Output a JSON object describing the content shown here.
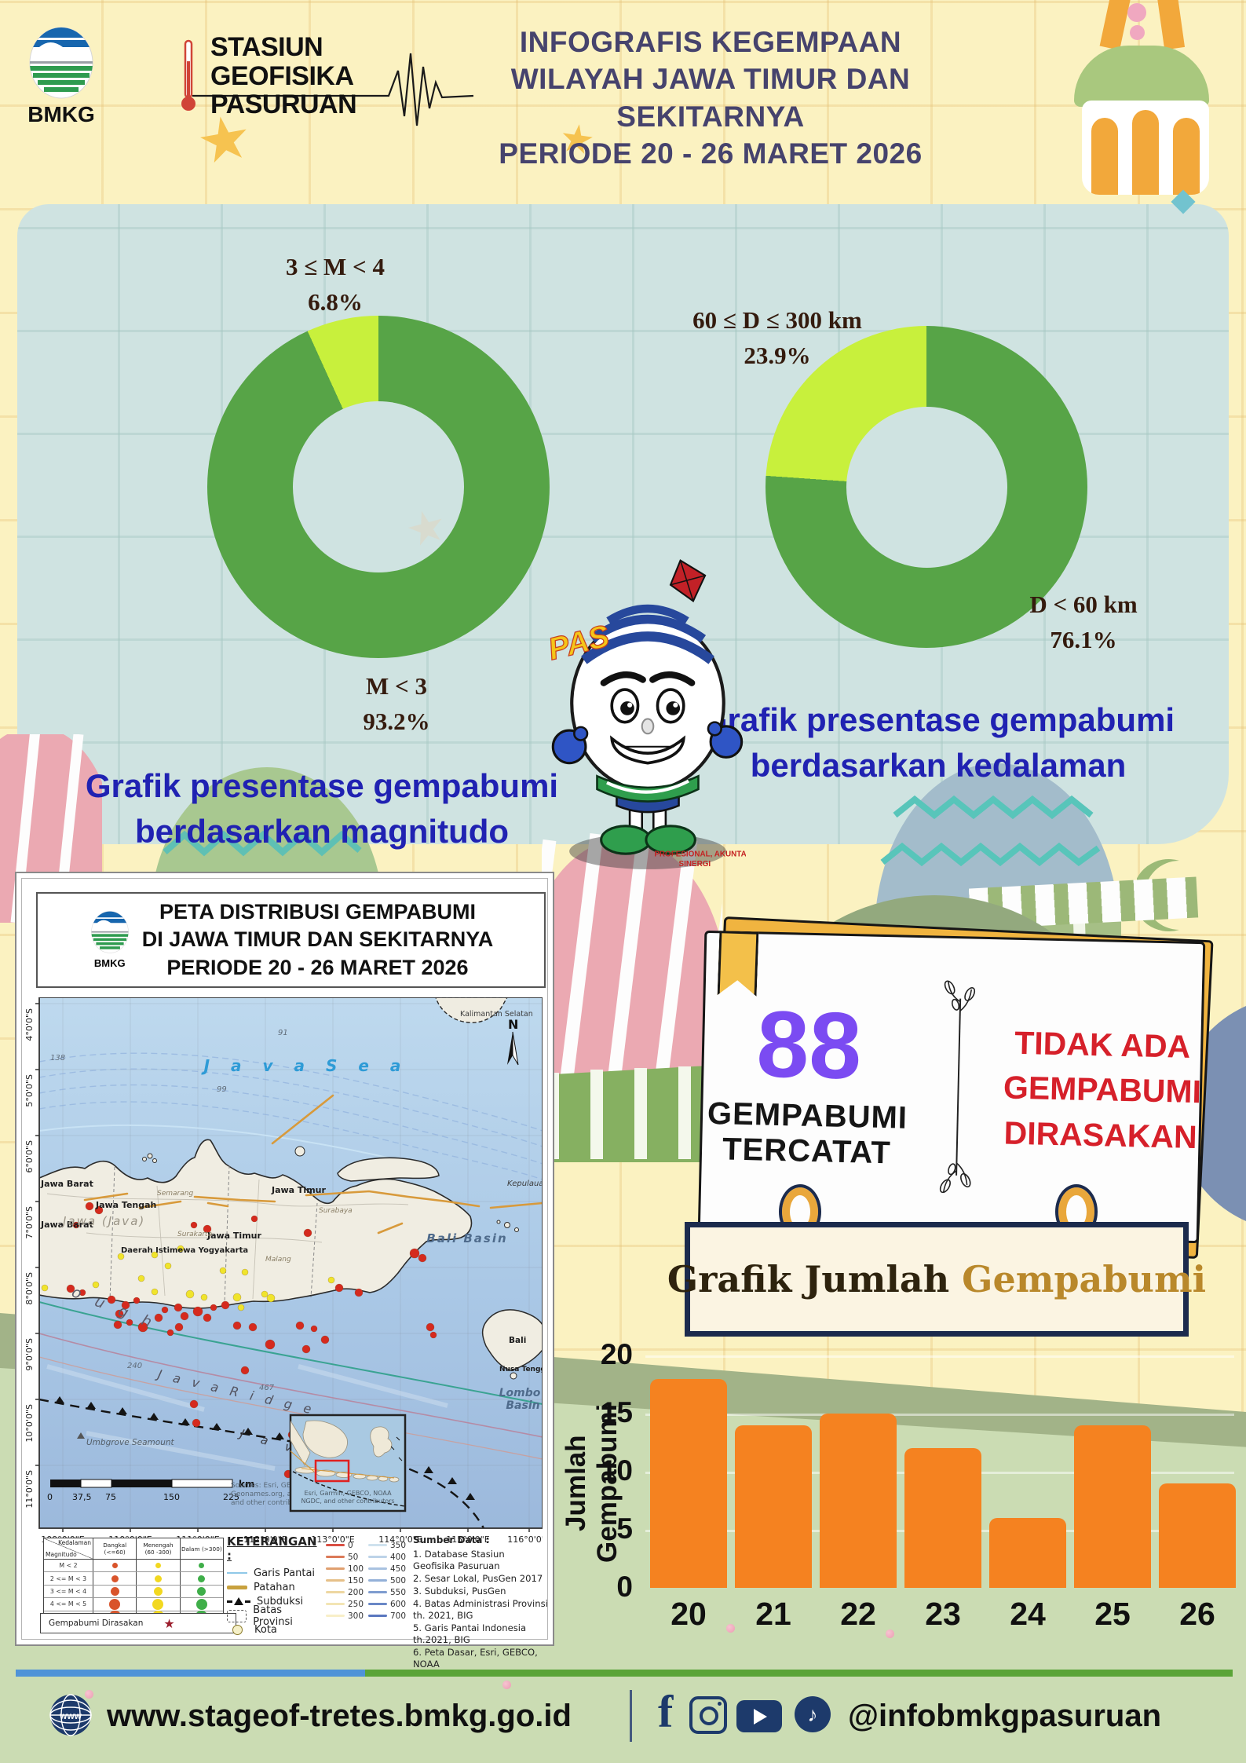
{
  "header": {
    "logo_text": "BMKG",
    "station_line1": "STASIUN",
    "station_line2": "GEOFISIKA",
    "station_line3": "PASURUAN",
    "title_line1": "INFOGRAFIS KEGEMPAAN",
    "title_line2": "WILAYAH JAWA TIMUR DAN SEKITARNYA",
    "title_line3": "PERIODE 20 - 26 MARET 2026"
  },
  "captions": {
    "left1": "Grafik presentase gempabumi",
    "left2": "berdasarkan magnitudo",
    "right1": "Grafik presentase gempabumi",
    "right2": "berdasarkan kedalaman"
  },
  "mascot": {
    "pas_label": "PAS",
    "motto_line1": "PROFESIONAL, AKUNTABLE,",
    "motto_line2": "SINERGI"
  },
  "chart_data": [
    {
      "id": "magnitude_donut",
      "type": "pie",
      "donut": true,
      "title": "Grafik presentase gempabumi berdasarkan magnitudo",
      "slices": [
        {
          "label": "M < 3",
          "pct": 93.2,
          "pct_label": "93.2%",
          "color": "#57a447"
        },
        {
          "label": "3 ≤ M < 4",
          "pct": 6.8,
          "pct_label": "6.8%",
          "color": "#c8f03c"
        }
      ]
    },
    {
      "id": "depth_donut",
      "type": "pie",
      "donut": true,
      "title": "Grafik presentase gempabumi berdasarkan kedalaman",
      "slices": [
        {
          "label": "D < 60 km",
          "pct": 76.1,
          "pct_label": "76.1%",
          "color": "#57a447"
        },
        {
          "label": "60 ≤ D ≤ 300 km",
          "pct": 23.9,
          "pct_label": "23.9%",
          "color": "#c8f03c"
        }
      ]
    },
    {
      "id": "daily_counts",
      "type": "bar",
      "title": "Grafik Jumlah Gempabumi",
      "categories": [
        "20",
        "21",
        "22",
        "23",
        "24",
        "25",
        "26"
      ],
      "values": [
        18,
        14,
        15,
        12,
        6,
        14,
        9
      ],
      "xlabel": "",
      "ylabel": "Jumlah Gempabumi",
      "ylim": [
        0,
        20
      ],
      "yticks": [
        0,
        5,
        10,
        15,
        20
      ],
      "bar_color": "#f58220",
      "grid": true,
      "legend": "none"
    }
  ],
  "stats_card": {
    "count": "88",
    "count_label1": "GEMPABUMI",
    "count_label2": "TERCATAT",
    "felt_line1": "TIDAK ADA",
    "felt_line2": "GEMPABUMI",
    "felt_line3": "DIRASAKAN"
  },
  "banner": {
    "part1": "Grafik Jumlah",
    "part2": "Gempabumi"
  },
  "map": {
    "title_line1": "PETA DISTRIBUSI GEMPABUMI",
    "title_line2": "DI JAWA TIMUR DAN SEKITARNYA",
    "title_line3": "PERIODE 20 - 26 MARET 2026",
    "logo_text": "BMKG",
    "north": "N",
    "labels": {
      "kalimantan": "Kalimantan Selatan",
      "java_sea": "J a v a   S e a",
      "jawa_barat": "Jawa Barat",
      "jawa_barat2": "Jawa Barat",
      "jawa_tengah": "Jawa Tengah",
      "jawa_java": "Jawa (Java)",
      "diy": "Daerah Istimewa Yogyakarta",
      "jawa_timur": "Jawa Timur",
      "jawa_timur2": "Jawa Timur",
      "bali_basin": "Bali Basin",
      "bali": "Bali",
      "ntb": "Nusa Tenggara Barat",
      "kepulauan": "Kepulauan",
      "lombo": "Lombo",
      "basin": "Basin",
      "java_ridge": "J a v a   R i d g e",
      "trough": "o u g h",
      "java_trench": "J a v a",
      "seamount": "Umbgrove Seamount"
    },
    "cities": [
      "Semarang",
      "Surakarta",
      "Surabaya",
      "Malang"
    ],
    "contours": [
      "138",
      "99",
      "91",
      "240",
      "467"
    ],
    "lat": [
      "4°0'0\"S",
      "5°0'0\"S",
      "6°0'0\"S",
      "7°0'0\"S",
      "8°0'0\"S",
      "9°0'0\"S",
      "10°0'0\"S",
      "11°0'0\"S"
    ],
    "lon": [
      "109°0'0\"E",
      "110°0'0\"E",
      "111°0'0\"E",
      "112°0'0\"E",
      "113°0'0\"E",
      "114°0'0\"E",
      "115°0'0\"E",
      "116°0'0\"E"
    ],
    "scale": {
      "ticks": [
        "0",
        "37,5",
        "75",
        "150",
        "225"
      ],
      "unit": "km"
    },
    "sources_line1": "Sources: Esri, GEBCO, NOAA",
    "sources_line2": "Geonames.org, and other con",
    "sources_line3": "and other contributors",
    "inset_credit1": "Esri, Garmin, GEBCO, NOAA",
    "inset_credit2": "NGDC, and other contributors",
    "legend": {
      "matrix": {
        "corner_top": "Kedalaman",
        "corner_bottom": "Magnitudo",
        "cols": [
          "Dangkal (<=60)",
          "Menengah (60 -300)",
          "Dalam (>300)"
        ],
        "rows": [
          "M < 2",
          "2 <= M < 3",
          "3 <= M < 4",
          "4 <= M < 5",
          "5 <= M < 6"
        ],
        "felt_label": "Gempabumi Dirasakan"
      },
      "keterangan_title": "KETERANGAN :",
      "items": [
        "Garis Pantai",
        "Patahan",
        "Subduksi",
        "Batas Provinsi",
        "Kota"
      ],
      "depth_left": [
        {
          "v": "0",
          "c": "#d94f43"
        },
        {
          "v": "50",
          "c": "#db7a58"
        },
        {
          "v": "100",
          "c": "#e0a070"
        },
        {
          "v": "150",
          "c": "#e6c089"
        },
        {
          "v": "200",
          "c": "#eed7a1"
        },
        {
          "v": "250",
          "c": "#f3e5b4"
        },
        {
          "v": "300",
          "c": "#f8efc8"
        }
      ],
      "depth_right": [
        {
          "v": "350",
          "c": "#cfe2ee"
        },
        {
          "v": "400",
          "c": "#bdd3e8"
        },
        {
          "v": "450",
          "c": "#a9c2e0"
        },
        {
          "v": "500",
          "c": "#94b0d8"
        },
        {
          "v": "550",
          "c": "#7f9ccf"
        },
        {
          "v": "600",
          "c": "#6a88c6"
        },
        {
          "v": "700",
          "c": "#5a77bf"
        }
      ],
      "sumber_title": "Sumber Data :",
      "sumber_items": [
        "1. Database Stasiun Geofisika Pasuruan",
        "2. Sesar Lokal, PusGen 2017",
        "3. Subduksi, PusGen",
        "4. Batas Administrasi Provinsi th. 2021, BIG",
        "5. Garis Pantai Indonesia th.2021, BIG",
        "6. Peta Dasar, Esri, GEBCO, NOAA"
      ]
    },
    "quake_dots": {
      "red": [
        [
          40,
          371,
          5
        ],
        [
          55,
          376,
          4
        ],
        [
          92,
          385,
          5
        ],
        [
          110,
          392,
          5
        ],
        [
          124,
          386,
          4
        ],
        [
          102,
          403,
          5
        ],
        [
          100,
          417,
          5
        ],
        [
          115,
          414,
          4
        ],
        [
          132,
          420,
          6
        ],
        [
          152,
          408,
          5
        ],
        [
          160,
          398,
          4
        ],
        [
          177,
          395,
          5
        ],
        [
          185,
          406,
          5
        ],
        [
          202,
          400,
          6
        ],
        [
          214,
          408,
          5
        ],
        [
          222,
          395,
          4
        ],
        [
          237,
          392,
          5
        ],
        [
          178,
          420,
          5
        ],
        [
          167,
          427,
          4
        ],
        [
          252,
          418,
          5
        ],
        [
          272,
          420,
          5
        ],
        [
          332,
          418,
          5
        ],
        [
          350,
          422,
          4
        ],
        [
          364,
          436,
          5
        ],
        [
          294,
          442,
          6
        ],
        [
          340,
          448,
          5
        ],
        [
          262,
          475,
          5
        ],
        [
          197,
          518,
          5
        ],
        [
          200,
          542,
          5
        ],
        [
          322,
          557,
          5
        ],
        [
          197,
          290,
          4
        ],
        [
          214,
          295,
          5
        ],
        [
          47,
          290,
          4
        ],
        [
          382,
          370,
          5
        ],
        [
          407,
          376,
          5
        ],
        [
          342,
          300,
          5
        ],
        [
          64,
          266,
          5
        ],
        [
          76,
          271,
          5
        ],
        [
          274,
          282,
          4
        ],
        [
          478,
          326,
          6
        ],
        [
          488,
          332,
          5
        ],
        [
          498,
          420,
          5
        ],
        [
          502,
          430,
          4
        ],
        [
          317,
          607,
          5
        ]
      ],
      "yellow": [
        [
          7,
          370,
          4
        ],
        [
          72,
          366,
          4
        ],
        [
          130,
          358,
          4
        ],
        [
          147,
          375,
          4
        ],
        [
          192,
          378,
          5
        ],
        [
          210,
          382,
          4
        ],
        [
          252,
          382,
          5
        ],
        [
          287,
          378,
          4
        ],
        [
          180,
          320,
          4
        ],
        [
          104,
          330,
          4
        ],
        [
          164,
          342,
          4
        ],
        [
          262,
          350,
          4
        ],
        [
          372,
          360,
          4
        ],
        [
          147,
          328,
          4
        ],
        [
          234,
          348,
          4
        ],
        [
          295,
          383,
          5
        ],
        [
          257,
          395,
          4
        ]
      ]
    }
  },
  "footer": {
    "website": "www.stageof-tretes.bmkg.go.id",
    "handle": "@infobmkgpasuruan"
  },
  "colors": {
    "accent_navy_title": "#46436d",
    "caption_blue": "#2022b2",
    "donut_green": "#57a447",
    "donut_lime": "#c8f03c",
    "stat_purple": "#7b4bf2",
    "alert_red": "#d6202a",
    "bar_orange": "#f58220",
    "footer_navy": "#1d3a6b",
    "quake_red": "#d52a1e",
    "quake_yellow": "#f0e42c",
    "dot_red": "#d9542b",
    "dot_yellow": "#f2d820",
    "dot_green": "#3fae49"
  }
}
